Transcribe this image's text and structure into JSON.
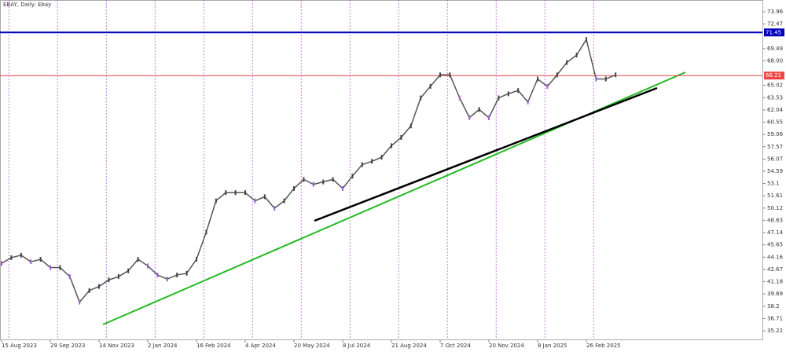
{
  "chart_data": {
    "type": "line",
    "title": "EBAY, Daily:  Ebay",
    "categories": [
      "15 Aug 2023",
      null,
      null,
      null,
      null,
      "29 Sep 2023",
      null,
      null,
      null,
      null,
      "14 Nov 2023",
      null,
      null,
      null,
      null,
      "2 Jan 2024",
      null,
      null,
      null,
      null,
      "16 Feb 2024",
      null,
      null,
      null,
      null,
      "4 Apr 2024",
      null,
      null,
      null,
      null,
      "20 May 2024",
      null,
      null,
      null,
      null,
      "8 Jul 2024",
      null,
      null,
      null,
      null,
      "21 Aug 2024",
      null,
      null,
      null,
      null,
      "7 Oct 2024",
      null,
      null,
      null,
      null,
      "20 Nov 2024",
      null,
      null,
      null,
      null,
      "8 Jan 2025",
      null,
      null,
      null,
      null,
      "26 Feb 2025",
      null,
      null,
      null
    ],
    "series": [
      {
        "name": "EBAY",
        "color": "#555555",
        "values": [
          43.4,
          44.1,
          44.4,
          43.6,
          43.9,
          42.9,
          42.9,
          41.8,
          38.7,
          40.1,
          40.6,
          41.4,
          41.8,
          42.5,
          43.9,
          43.1,
          42.0,
          41.5,
          42.0,
          42.2,
          43.9,
          47.2,
          51.0,
          52.0,
          52.0,
          52.0,
          51.0,
          51.5,
          50.1,
          51.0,
          52.5,
          53.6,
          53.0,
          53.3,
          53.6,
          52.5,
          54.0,
          55.4,
          55.8,
          56.3,
          57.7,
          58.7,
          60.1,
          63.5,
          64.9,
          66.3,
          66.3,
          63.5,
          61.1,
          62.1,
          61.1,
          63.5,
          64.0,
          64.4,
          63.0,
          65.8,
          64.9,
          66.3,
          67.8,
          68.7,
          70.6,
          65.8,
          65.8,
          66.3
        ]
      }
    ],
    "ylim": [
      34.17,
      75.39
    ],
    "yticks": [
      73.96,
      72.47,
      69.49,
      {
        "value": 68,
        "label": "68.00"
      },
      65.02,
      63.53,
      62.04,
      60.55,
      59.06,
      57.57,
      56.07,
      54.59,
      53.1,
      51.61,
      50.12,
      48.63,
      47.14,
      45.65,
      44.16,
      42.67,
      41.18,
      39.69,
      38.2,
      36.71,
      35.22
    ],
    "levels": [
      {
        "value": 71.45,
        "color": "#0000bb"
      },
      {
        "value": 66.21,
        "color": "#ee4444"
      }
    ],
    "grid": true
  }
}
